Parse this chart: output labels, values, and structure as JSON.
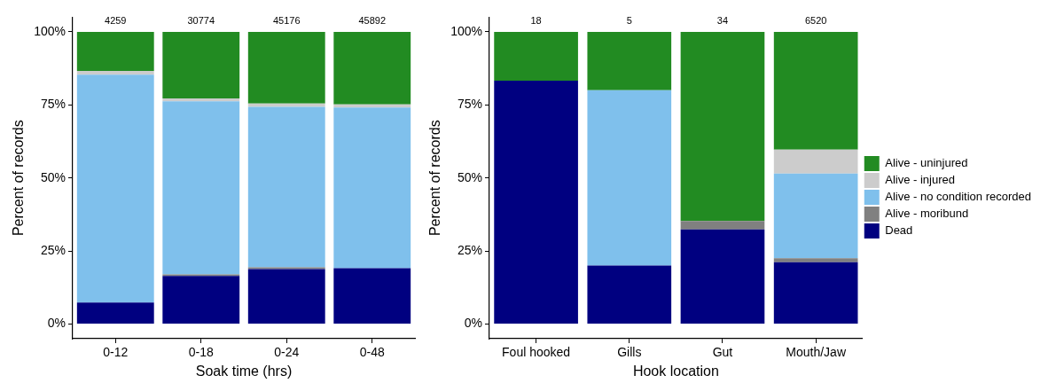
{
  "chart_data": [
    {
      "type": "bar",
      "stacked": true,
      "xlabel": "Soak time (hrs)",
      "ylabel": "Percent of records",
      "categories": [
        "0-12",
        "0-18",
        "0-24",
        "0-48"
      ],
      "ylim": [
        -5,
        105
      ],
      "yticks": [
        {
          "value": 0,
          "label": "0%"
        },
        {
          "value": 25,
          "label": "25%"
        },
        {
          "value": 50,
          "label": "50%"
        },
        {
          "value": 75,
          "label": "75%"
        },
        {
          "value": 100,
          "label": "100%"
        }
      ],
      "grid": false,
      "legend": false,
      "series": [
        {
          "color": "#000080",
          "values": [
            7.4,
            16.5,
            18.8,
            19.1
          ]
        },
        {
          "color": "#808080",
          "values": [
            0,
            0.5,
            0.6,
            0
          ]
        },
        {
          "color": "#7fc0ec",
          "values": [
            77.9,
            59.2,
            54.9,
            55.0
          ]
        },
        {
          "color": "#cccccc",
          "values": [
            1.3,
            1.0,
            1.2,
            1.1
          ]
        },
        {
          "color": "#228b22",
          "values": [
            13.4,
            22.8,
            24.5,
            24.8
          ]
        }
      ],
      "annotations": [
        {
          "text": "4259",
          "x": "0-12",
          "y": 100
        },
        {
          "text": "30774",
          "x": "0-18",
          "y": 100
        },
        {
          "text": "45176",
          "x": "0-24",
          "y": 100
        },
        {
          "text": "45892",
          "x": "0-48",
          "y": 100
        }
      ]
    },
    {
      "type": "bar",
      "stacked": true,
      "xlabel": "Hook location",
      "ylabel": "Percent of records",
      "categories": [
        "Foul hooked",
        "Gills",
        "Gut",
        "Mouth/Jaw"
      ],
      "ylim": [
        -5,
        105
      ],
      "yticks": [
        {
          "value": 0,
          "label": "0%"
        },
        {
          "value": 25,
          "label": "25%"
        },
        {
          "value": 50,
          "label": "50%"
        },
        {
          "value": 75,
          "label": "75%"
        },
        {
          "value": 100,
          "label": "100%"
        }
      ],
      "grid": false,
      "legend": "right",
      "series": [
        {
          "name": "Dead",
          "color": "#000080",
          "values": [
            83.3,
            20,
            32.4,
            21.2
          ]
        },
        {
          "name": "Alive - moribund",
          "color": "#808080",
          "values": [
            0,
            0,
            2.9,
            1.3
          ]
        },
        {
          "name": "Alive - no condition recorded",
          "color": "#7fc0ec",
          "values": [
            0,
            60,
            0,
            29.0
          ]
        },
        {
          "name": "Alive - injured",
          "color": "#cccccc",
          "values": [
            0,
            0,
            0,
            8.2
          ]
        },
        {
          "name": "Alive - uninjured",
          "color": "#228b22",
          "values": [
            16.7,
            20,
            64.7,
            40.3
          ]
        }
      ],
      "annotations": [
        {
          "text": "18",
          "x": "Foul hooked",
          "y": 100
        },
        {
          "text": "5",
          "x": "Gills",
          "y": 100
        },
        {
          "text": "34",
          "x": "Gut",
          "y": 100
        },
        {
          "text": "6520",
          "x": "Mouth/Jaw",
          "y": 100
        }
      ]
    }
  ]
}
